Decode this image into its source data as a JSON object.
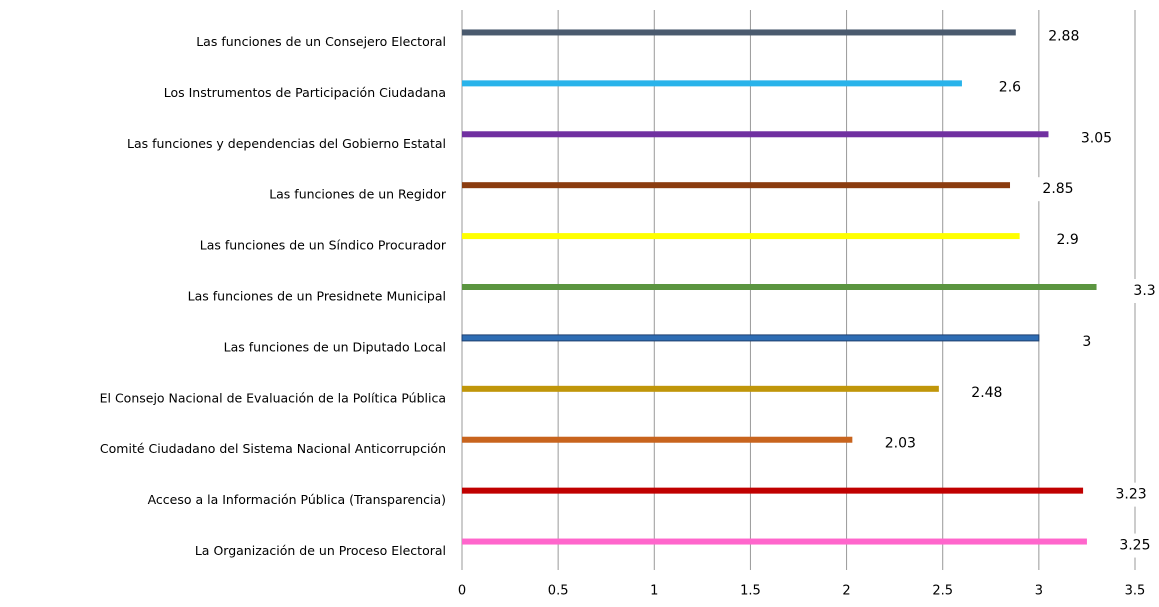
{
  "chart_data": {
    "type": "bar",
    "orientation": "horizontal",
    "categories": [
      "Las funciones de un Consejero Electoral",
      "Los Instrumentos de Participación Ciudadana",
      "Las funciones y dependencias del Gobierno Estatal",
      "Las funciones de un Regidor",
      "Las funciones de un Síndico Procurador",
      "Las funciones de un Presidnete Municipal",
      "Las funciones de un Diputado Local",
      "El Consejo Nacional de Evaluación de la Política Pública",
      "Comité Ciudadano del Sistema Nacional Anticorrupción",
      "Acceso a la Información Pública (Transparencia)",
      "La Organización de un Proceso Electoral"
    ],
    "values": [
      2.88,
      2.6,
      3.05,
      2.85,
      2.9,
      3.3,
      3,
      2.48,
      2.03,
      3.23,
      3.25
    ],
    "colors": [
      "#4a5a6e",
      "#29b3ea",
      "#7030a0",
      "#8b3c0f",
      "#ffff00",
      "#5b9540",
      "#2e6db4",
      "#c0960a",
      "#c8641e",
      "#c00000",
      "#ff66cc"
    ],
    "xlim": [
      0,
      3.5
    ],
    "xticks": [
      0,
      0.5,
      1,
      1.5,
      2,
      2.5,
      3,
      3.5
    ],
    "grid": true
  }
}
